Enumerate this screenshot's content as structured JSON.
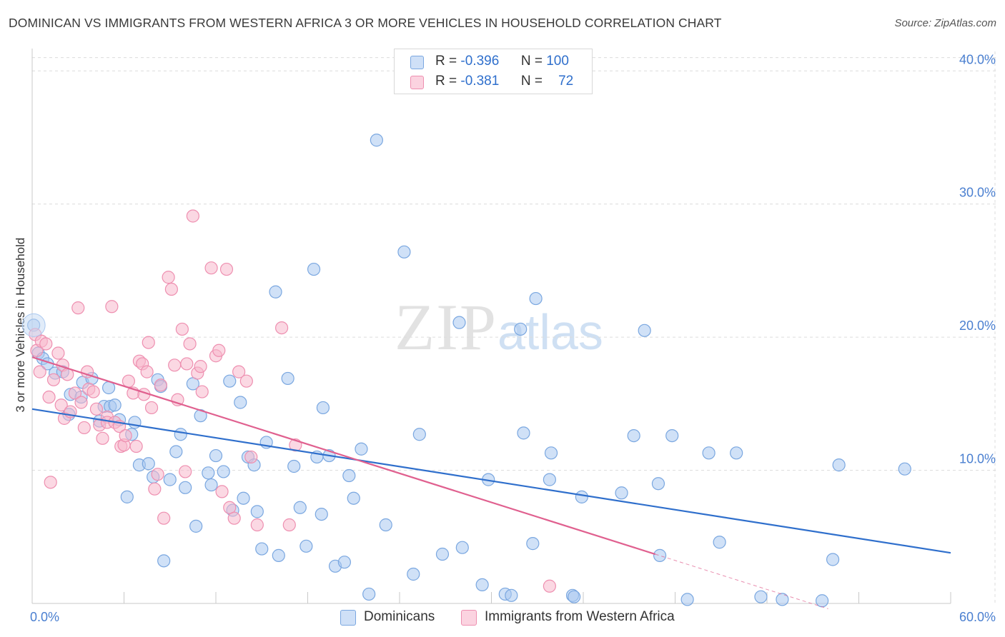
{
  "title": "DOMINICAN VS IMMIGRANTS FROM WESTERN AFRICA 3 OR MORE VEHICLES IN HOUSEHOLD CORRELATION CHART",
  "source": "Source: ZipAtlas.com",
  "watermark": {
    "zip": "ZIP",
    "atlas": "atlas"
  },
  "legend": {
    "rows": [
      {
        "r_label": "R =",
        "r_value": "-0.396",
        "n_label": "N =",
        "n_value": "100",
        "color": "#a9c8f0"
      },
      {
        "r_label": "R =",
        "r_value": "-0.381",
        "n_label": "N =",
        "n_value": "72",
        "color": "#f7b8cc"
      }
    ]
  },
  "chart_data": {
    "type": "scatter",
    "title": "DOMINICAN VS IMMIGRANTS FROM WESTERN AFRICA 3 OR MORE VEHICLES IN HOUSEHOLD CORRELATION CHART",
    "xlabel": "",
    "ylabel": "3 or more Vehicles in Household",
    "xlim": [
      0,
      60
    ],
    "ylim": [
      0,
      42
    ],
    "x_tick_labels": [
      "0.0%",
      "60.0%"
    ],
    "y_ticks": [
      10,
      20,
      30,
      40
    ],
    "y_tick_labels": [
      "10.0%",
      "20.0%",
      "30.0%",
      "40.0%"
    ],
    "grid": true,
    "legend_position": "top-center",
    "series": [
      {
        "name": "Dominicans",
        "color": "#7aa7e0",
        "fill": "#a9c8f0",
        "line_color": "#2f6fcc",
        "trend": {
          "x": [
            0,
            60
          ],
          "y": [
            14.6,
            3.8
          ]
        },
        "points": [
          [
            0.1,
            20.9
          ],
          [
            0.4,
            18.8
          ],
          [
            0.7,
            18.4
          ],
          [
            1.0,
            18.0
          ],
          [
            1.5,
            17.3
          ],
          [
            2.0,
            17.4
          ],
          [
            2.5,
            15.7
          ],
          [
            2.4,
            14.2
          ],
          [
            3.2,
            15.5
          ],
          [
            3.3,
            16.6
          ],
          [
            3.9,
            16.9
          ],
          [
            4.4,
            13.7
          ],
          [
            4.7,
            14.8
          ],
          [
            5.1,
            14.8
          ],
          [
            5.0,
            16.2
          ],
          [
            5.4,
            14.9
          ],
          [
            5.7,
            13.8
          ],
          [
            6.2,
            8.0
          ],
          [
            6.5,
            12.7
          ],
          [
            6.7,
            13.6
          ],
          [
            7.0,
            10.4
          ],
          [
            7.6,
            10.5
          ],
          [
            7.9,
            9.5
          ],
          [
            8.2,
            16.8
          ],
          [
            8.4,
            16.3
          ],
          [
            8.6,
            3.2
          ],
          [
            9.0,
            9.3
          ],
          [
            9.4,
            11.4
          ],
          [
            9.7,
            12.7
          ],
          [
            10.0,
            8.7
          ],
          [
            10.5,
            16.5
          ],
          [
            10.7,
            5.8
          ],
          [
            11.0,
            14.1
          ],
          [
            11.5,
            9.8
          ],
          [
            11.7,
            8.9
          ],
          [
            12.0,
            11.1
          ],
          [
            12.5,
            9.9
          ],
          [
            12.9,
            16.7
          ],
          [
            13.1,
            7.0
          ],
          [
            13.6,
            15.1
          ],
          [
            13.8,
            7.9
          ],
          [
            14.1,
            11.0
          ],
          [
            14.5,
            10.4
          ],
          [
            14.7,
            6.9
          ],
          [
            15.0,
            4.1
          ],
          [
            15.3,
            12.1
          ],
          [
            15.9,
            23.4
          ],
          [
            16.1,
            3.6
          ],
          [
            16.7,
            16.9
          ],
          [
            17.1,
            10.3
          ],
          [
            17.5,
            7.2
          ],
          [
            17.9,
            4.3
          ],
          [
            18.4,
            25.1
          ],
          [
            18.6,
            11.0
          ],
          [
            18.9,
            6.7
          ],
          [
            19.0,
            14.7
          ],
          [
            19.4,
            11.1
          ],
          [
            19.8,
            2.8
          ],
          [
            20.4,
            3.1
          ],
          [
            20.7,
            9.6
          ],
          [
            21.0,
            7.9
          ],
          [
            21.5,
            11.6
          ],
          [
            22.0,
            0.7
          ],
          [
            22.5,
            34.8
          ],
          [
            23.1,
            5.9
          ],
          [
            24.3,
            26.4
          ],
          [
            24.9,
            2.2
          ],
          [
            25.3,
            12.7
          ],
          [
            26.8,
            3.7
          ],
          [
            27.9,
            21.1
          ],
          [
            28.1,
            4.2
          ],
          [
            29.4,
            1.4
          ],
          [
            29.8,
            9.3
          ],
          [
            30.9,
            0.7
          ],
          [
            31.3,
            0.6
          ],
          [
            31.9,
            20.6
          ],
          [
            32.1,
            12.8
          ],
          [
            32.7,
            4.5
          ],
          [
            32.9,
            22.9
          ],
          [
            33.8,
            9.3
          ],
          [
            33.9,
            11.3
          ],
          [
            35.3,
            0.6
          ],
          [
            35.4,
            0.5
          ],
          [
            35.9,
            8.0
          ],
          [
            38.5,
            8.3
          ],
          [
            39.3,
            12.6
          ],
          [
            40.0,
            20.5
          ],
          [
            40.9,
            9.0
          ],
          [
            41.0,
            3.6
          ],
          [
            41.8,
            12.6
          ],
          [
            42.8,
            0.3
          ],
          [
            44.2,
            11.3
          ],
          [
            44.9,
            4.6
          ],
          [
            46.0,
            11.3
          ],
          [
            47.6,
            0.5
          ],
          [
            49.0,
            0.3
          ],
          [
            51.6,
            0.2
          ],
          [
            52.3,
            3.3
          ],
          [
            52.7,
            10.4
          ],
          [
            57.0,
            10.1
          ]
        ]
      },
      {
        "name": "Immigrants from Western Africa",
        "color": "#ee8fb0",
        "fill": "#f7b8cc",
        "line_color": "#e0608f",
        "trend": {
          "x": [
            0,
            40.7
          ],
          "y": [
            18.5,
            3.7
          ]
        },
        "trend_dashed": {
          "x": [
            40.7,
            52.0
          ],
          "y": [
            3.7,
            -0.4
          ]
        },
        "points": [
          [
            0.2,
            20.2
          ],
          [
            0.3,
            19.0
          ],
          [
            0.5,
            17.4
          ],
          [
            0.6,
            19.7
          ],
          [
            0.9,
            19.5
          ],
          [
            1.1,
            15.5
          ],
          [
            1.2,
            9.1
          ],
          [
            1.4,
            16.8
          ],
          [
            1.7,
            18.8
          ],
          [
            1.9,
            14.9
          ],
          [
            2.0,
            17.9
          ],
          [
            2.1,
            13.9
          ],
          [
            2.3,
            17.2
          ],
          [
            2.5,
            14.4
          ],
          [
            2.8,
            15.8
          ],
          [
            3.0,
            22.2
          ],
          [
            3.2,
            15.1
          ],
          [
            3.4,
            13.2
          ],
          [
            3.6,
            17.4
          ],
          [
            3.7,
            16.1
          ],
          [
            4.0,
            15.9
          ],
          [
            4.2,
            14.6
          ],
          [
            4.4,
            13.4
          ],
          [
            4.6,
            12.4
          ],
          [
            4.9,
            14.0
          ],
          [
            4.9,
            13.6
          ],
          [
            5.2,
            22.3
          ],
          [
            5.4,
            13.6
          ],
          [
            5.7,
            13.3
          ],
          [
            5.8,
            11.8
          ],
          [
            6.0,
            11.9
          ],
          [
            6.1,
            12.6
          ],
          [
            6.3,
            16.7
          ],
          [
            6.6,
            15.8
          ],
          [
            6.8,
            11.8
          ],
          [
            7.0,
            18.2
          ],
          [
            7.2,
            18.0
          ],
          [
            7.3,
            15.7
          ],
          [
            7.5,
            17.4
          ],
          [
            7.6,
            19.6
          ],
          [
            7.8,
            14.7
          ],
          [
            8.0,
            8.6
          ],
          [
            8.2,
            9.7
          ],
          [
            8.4,
            16.4
          ],
          [
            8.6,
            6.4
          ],
          [
            8.9,
            24.5
          ],
          [
            9.1,
            23.6
          ],
          [
            9.3,
            17.9
          ],
          [
            9.5,
            15.3
          ],
          [
            9.8,
            20.6
          ],
          [
            10.0,
            9.9
          ],
          [
            10.1,
            18.0
          ],
          [
            10.3,
            19.5
          ],
          [
            10.5,
            29.1
          ],
          [
            10.8,
            17.3
          ],
          [
            11.0,
            17.8
          ],
          [
            11.1,
            15.9
          ],
          [
            11.7,
            25.2
          ],
          [
            12.0,
            18.6
          ],
          [
            12.2,
            19.0
          ],
          [
            12.4,
            8.4
          ],
          [
            12.7,
            25.1
          ],
          [
            12.9,
            7.2
          ],
          [
            13.2,
            6.4
          ],
          [
            13.5,
            17.4
          ],
          [
            14.0,
            16.7
          ],
          [
            14.3,
            11.0
          ],
          [
            14.7,
            5.9
          ],
          [
            16.3,
            20.7
          ],
          [
            16.8,
            5.9
          ],
          [
            17.2,
            11.9
          ],
          [
            33.8,
            1.3
          ]
        ]
      }
    ]
  },
  "bottom_legend": {
    "items": [
      {
        "label": "Dominicans",
        "color": "#a9c8f0"
      },
      {
        "label": "Immigrants from Western Africa",
        "color": "#f7b8cc"
      }
    ]
  }
}
